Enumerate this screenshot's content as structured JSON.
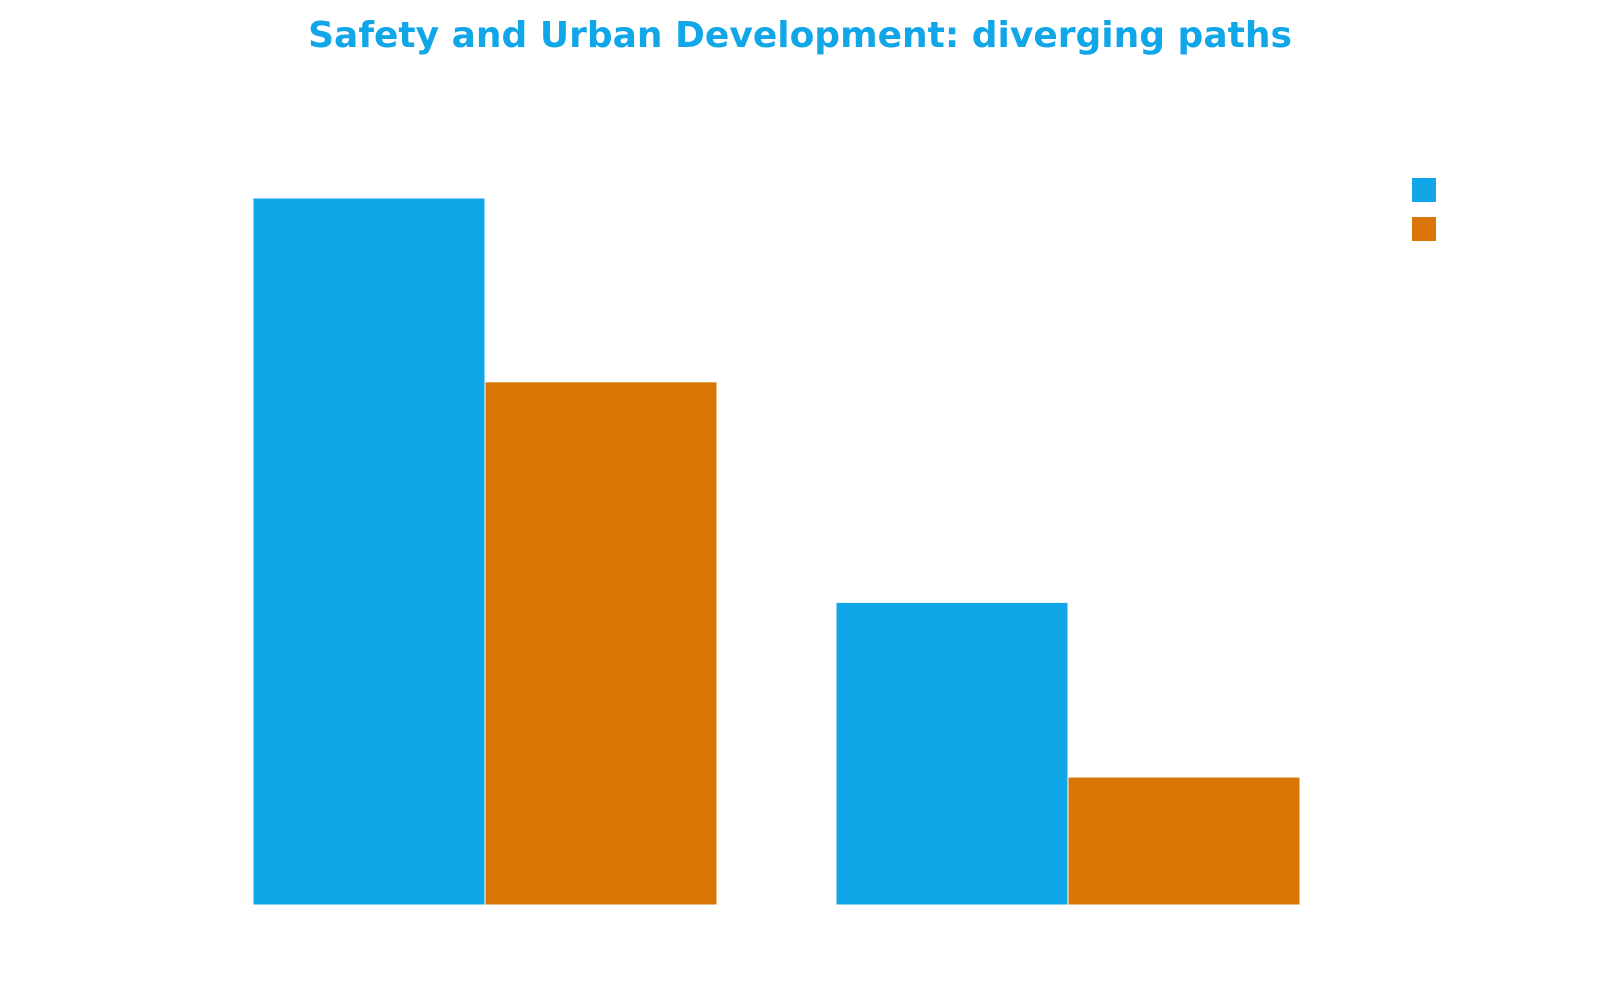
{
  "colors": {
    "title": "#10a6e8",
    "series_1": "#10a6e8",
    "series_2": "#d97604"
  },
  "chart_data": {
    "type": "bar",
    "title": "Safety and Urban Development: diverging paths",
    "subtitle": "",
    "xlabel": "",
    "ylabel": "",
    "categories": [
      "",
      ""
    ],
    "series": [
      {
        "values": [
          100,
          42.8
        ]
      },
      {
        "values": [
          74,
          18.1
        ]
      }
    ],
    "ylim": [
      0,
      100
    ],
    "grid": false,
    "legend": "top-right",
    "axes_visible": false
  }
}
